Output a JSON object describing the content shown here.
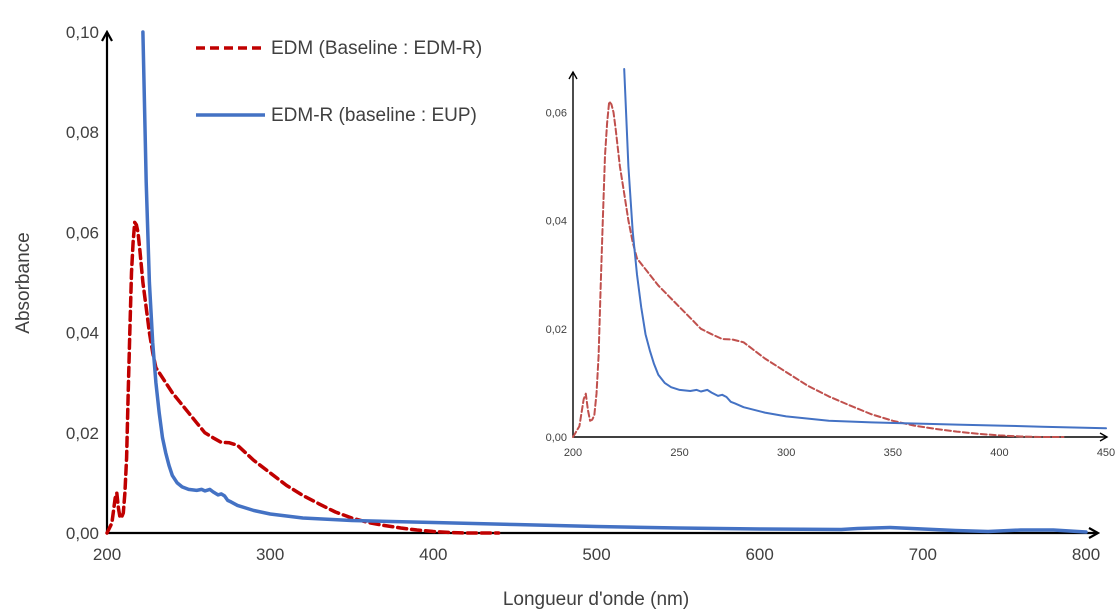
{
  "chart_data": [
    {
      "type": "line",
      "title": "",
      "xlabel": "Longueur d'onde (nm)",
      "ylabel": "Absorbance",
      "xlim": [
        200,
        800
      ],
      "ylim": [
        0,
        0.1
      ],
      "x_ticks": [
        "200",
        "300",
        "400",
        "500",
        "600",
        "700",
        "800"
      ],
      "y_ticks": [
        "0,00",
        "0,02",
        "0,04",
        "0,06",
        "0,08",
        "0,10"
      ],
      "grid": false,
      "legend_position": "top",
      "series": [
        {
          "name": "EDM (Baseline : EDM-R)",
          "color": "#c00000",
          "style": "dashed",
          "x": [
            200,
            203,
            205,
            206,
            207,
            208,
            209,
            210,
            211,
            212,
            213,
            214,
            215,
            216,
            217,
            218,
            219,
            220,
            222,
            224,
            226,
            228,
            230,
            235,
            240,
            245,
            250,
            255,
            260,
            265,
            270,
            275,
            280,
            290,
            300,
            310,
            320,
            330,
            340,
            350,
            360,
            370,
            380,
            390,
            400,
            410,
            420,
            430,
            440
          ],
          "y": [
            0,
            0.002,
            0.007,
            0.008,
            0.005,
            0.003,
            0.0032,
            0.004,
            0.008,
            0.015,
            0.028,
            0.04,
            0.052,
            0.058,
            0.062,
            0.0615,
            0.06,
            0.057,
            0.05,
            0.045,
            0.04,
            0.036,
            0.033,
            0.0305,
            0.028,
            0.026,
            0.024,
            0.022,
            0.02,
            0.019,
            0.0181,
            0.018,
            0.0175,
            0.0145,
            0.012,
            0.0095,
            0.0075,
            0.0058,
            0.0042,
            0.003,
            0.0021,
            0.0015,
            0.001,
            0.0006,
            0.0003,
            0.0001,
            0,
            0,
            0
          ]
        },
        {
          "name": "EDM-R (baseline : EUP)",
          "color": "#4472c4",
          "style": "solid",
          "x": [
            222,
            224,
            226,
            228,
            230,
            232,
            234,
            236,
            238,
            240,
            243,
            246,
            250,
            255,
            258,
            260,
            263,
            265,
            268,
            270,
            272,
            274,
            276,
            280,
            290,
            300,
            320,
            350,
            400,
            450,
            500,
            550,
            600,
            650,
            660,
            680,
            700,
            720,
            740,
            760,
            780,
            800
          ],
          "y": [
            0.1,
            0.07,
            0.05,
            0.038,
            0.03,
            0.024,
            0.019,
            0.016,
            0.0135,
            0.0115,
            0.01,
            0.0092,
            0.0087,
            0.0085,
            0.0087,
            0.0084,
            0.0087,
            0.0082,
            0.0076,
            0.0078,
            0.0074,
            0.0065,
            0.0062,
            0.0055,
            0.0045,
            0.0038,
            0.003,
            0.0025,
            0.0021,
            0.0017,
            0.0013,
            0.001,
            0.0008,
            0.0007,
            0.0009,
            0.0011,
            0.0008,
            0.0005,
            0.0003,
            0.0006,
            0.0006,
            0.0002
          ]
        }
      ]
    },
    {
      "type": "line",
      "title": "",
      "xlabel": "",
      "ylabel": "",
      "xlim": [
        200,
        450
      ],
      "ylim": [
        0,
        0.068
      ],
      "x_ticks": [
        "200",
        "250",
        "300",
        "350",
        "400",
        "450"
      ],
      "y_ticks": [
        "0,00",
        "0,02",
        "0,04",
        "0,06"
      ],
      "grid": false,
      "inset": true,
      "series": [
        {
          "color": "#c0504d",
          "style": "dashed",
          "x": [
            200,
            203,
            205,
            206,
            207,
            208,
            209,
            210,
            211,
            212,
            213,
            214,
            215,
            216,
            217,
            218,
            219,
            220,
            222,
            224,
            226,
            228,
            230,
            235,
            240,
            245,
            250,
            255,
            260,
            265,
            270,
            275,
            280,
            290,
            300,
            310,
            320,
            330,
            340,
            350,
            360,
            370,
            380,
            390,
            400,
            410,
            420,
            430
          ],
          "y": [
            0,
            0.002,
            0.007,
            0.008,
            0.005,
            0.003,
            0.0032,
            0.004,
            0.008,
            0.015,
            0.028,
            0.04,
            0.052,
            0.058,
            0.062,
            0.0615,
            0.06,
            0.057,
            0.05,
            0.045,
            0.04,
            0.036,
            0.033,
            0.0305,
            0.028,
            0.026,
            0.024,
            0.022,
            0.02,
            0.019,
            0.0181,
            0.018,
            0.0175,
            0.0145,
            0.012,
            0.0095,
            0.0075,
            0.0058,
            0.0042,
            0.003,
            0.0021,
            0.0015,
            0.001,
            0.0006,
            0.0003,
            0.0001,
            0,
            0
          ]
        },
        {
          "color": "#4472c4",
          "style": "solid",
          "x": [
            224,
            226,
            228,
            230,
            232,
            234,
            236,
            238,
            240,
            243,
            246,
            250,
            255,
            258,
            260,
            263,
            265,
            268,
            270,
            272,
            274,
            276,
            280,
            290,
            300,
            320,
            340,
            360,
            380,
            400,
            420,
            440,
            450
          ],
          "y": [
            0.068,
            0.05,
            0.038,
            0.03,
            0.024,
            0.019,
            0.016,
            0.0135,
            0.0115,
            0.01,
            0.0092,
            0.0087,
            0.0085,
            0.0087,
            0.0084,
            0.0087,
            0.0082,
            0.0076,
            0.0078,
            0.0074,
            0.0065,
            0.0062,
            0.0055,
            0.0045,
            0.0038,
            0.003,
            0.0027,
            0.0025,
            0.0023,
            0.0021,
            0.0019,
            0.0017,
            0.0016
          ]
        }
      ]
    }
  ]
}
